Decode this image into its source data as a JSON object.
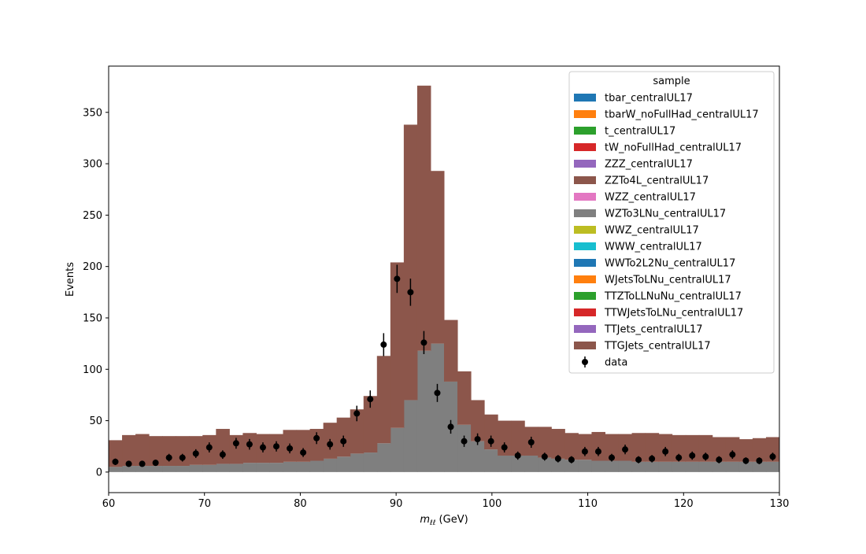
{
  "chart_data": {
    "type": "bar",
    "stacked": true,
    "xlabel_var": "m",
    "xlabel_sub": "ℓℓ",
    "xlabel_unit": " (GeV)",
    "ylabel": "Events",
    "xlim": [
      60,
      130
    ],
    "ylim": [
      -20,
      395
    ],
    "x_ticks": [
      60,
      70,
      80,
      90,
      100,
      110,
      120,
      130
    ],
    "y_ticks": [
      0,
      50,
      100,
      150,
      200,
      250,
      300,
      350
    ],
    "bin_edges": [
      60.0,
      61.4,
      62.8,
      64.2,
      65.6,
      67.0,
      68.4,
      69.8,
      71.2,
      72.6,
      74.0,
      75.4,
      76.8,
      78.2,
      79.6,
      81.0,
      82.4,
      83.8,
      85.2,
      86.6,
      88.0,
      89.4,
      90.8,
      92.2,
      93.6,
      95.0,
      96.4,
      97.8,
      99.2,
      100.6,
      102.0,
      103.4,
      104.8,
      106.2,
      107.6,
      109.0,
      110.4,
      111.8,
      113.2,
      114.6,
      116.0,
      117.4,
      118.8,
      120.2,
      121.6,
      123.0,
      124.4,
      125.8,
      127.2,
      128.6,
      130.0
    ],
    "legend_title": "sample",
    "legend_position": "upper right",
    "grid": false,
    "stack_series": [
      {
        "name": "tbar_centralUL17",
        "color": "#1f77b4"
      },
      {
        "name": "tbarW_noFullHad_centralUL17",
        "color": "#ff7f0e"
      },
      {
        "name": "t_centralUL17",
        "color": "#2ca02c"
      },
      {
        "name": "tW_noFullHad_centralUL17",
        "color": "#d62728"
      },
      {
        "name": "ZZZ_centralUL17",
        "color": "#9467bd"
      },
      {
        "name": "ZZTo4L_centralUL17",
        "color": "#8c564b"
      },
      {
        "name": "WZZ_centralUL17",
        "color": "#e377c2"
      },
      {
        "name": "WZTo3LNu_centralUL17",
        "color": "#7f7f7f",
        "values": [
          5,
          6,
          6,
          6,
          6,
          6,
          7,
          7,
          8,
          8,
          9,
          9,
          9,
          10,
          10,
          11,
          13,
          15,
          18,
          19,
          28,
          43,
          70,
          118,
          125,
          88,
          46,
          30,
          22,
          16,
          16,
          16,
          14,
          13,
          12,
          12,
          11,
          11,
          11,
          10,
          10,
          10,
          10,
          10,
          10,
          10,
          10,
          10,
          10,
          10
        ]
      },
      {
        "name": "WWZ_centralUL17",
        "color": "#bcbd22"
      },
      {
        "name": "WWW_centralUL17",
        "color": "#17becf"
      },
      {
        "name": "WWTo2L2Nu_centralUL17",
        "color": "#1f77b4"
      },
      {
        "name": "WJetsToLNu_centralUL17",
        "color": "#ff7f0e"
      },
      {
        "name": "TTZToLLNuNu_centralUL17",
        "color": "#2ca02c"
      },
      {
        "name": "TTWJetsToLNu_centralUL17",
        "color": "#d62728"
      },
      {
        "name": "TTJets_centralUL17",
        "color": "#9467bd"
      },
      {
        "name": "TTGJets_centralUL17",
        "color": "#8c564b",
        "values": [
          26,
          30,
          31,
          29,
          29,
          29,
          28,
          29,
          34,
          28,
          29,
          28,
          28,
          31,
          31,
          31,
          35,
          38,
          43,
          55,
          85,
          161,
          268,
          258,
          168,
          60,
          52,
          40,
          34,
          34,
          34,
          28,
          30,
          29,
          26,
          25,
          28,
          26,
          26,
          28,
          28,
          27,
          26,
          26,
          26,
          24,
          24,
          22,
          23,
          24
        ]
      }
    ],
    "data_series": {
      "name": "data",
      "x": [
        60.7,
        62.1,
        63.5,
        64.9,
        66.3,
        67.7,
        69.1,
        70.5,
        71.9,
        73.3,
        74.7,
        76.1,
        77.5,
        78.9,
        80.3,
        81.7,
        83.1,
        84.5,
        85.9,
        87.3,
        88.7,
        90.1,
        91.5,
        92.9,
        94.3,
        95.7,
        97.1,
        98.5,
        99.9,
        101.3,
        102.7,
        104.1,
        105.5,
        106.9,
        108.3,
        109.7,
        111.1,
        112.5,
        113.9,
        115.3,
        116.7,
        118.1,
        119.5,
        120.9,
        122.3,
        123.7,
        125.1,
        126.5,
        127.9,
        129.3
      ],
      "y": [
        10,
        8,
        8,
        9,
        14,
        14,
        18,
        24,
        17,
        28,
        27,
        24,
        25,
        23,
        19,
        33,
        27,
        30,
        57,
        71,
        124,
        188,
        175,
        126,
        77,
        44,
        30,
        32,
        30,
        24,
        16,
        29,
        15,
        13,
        12,
        20,
        20,
        14,
        22,
        12,
        13,
        20,
        14,
        16,
        15,
        12,
        17,
        11,
        11,
        15
      ]
    }
  }
}
